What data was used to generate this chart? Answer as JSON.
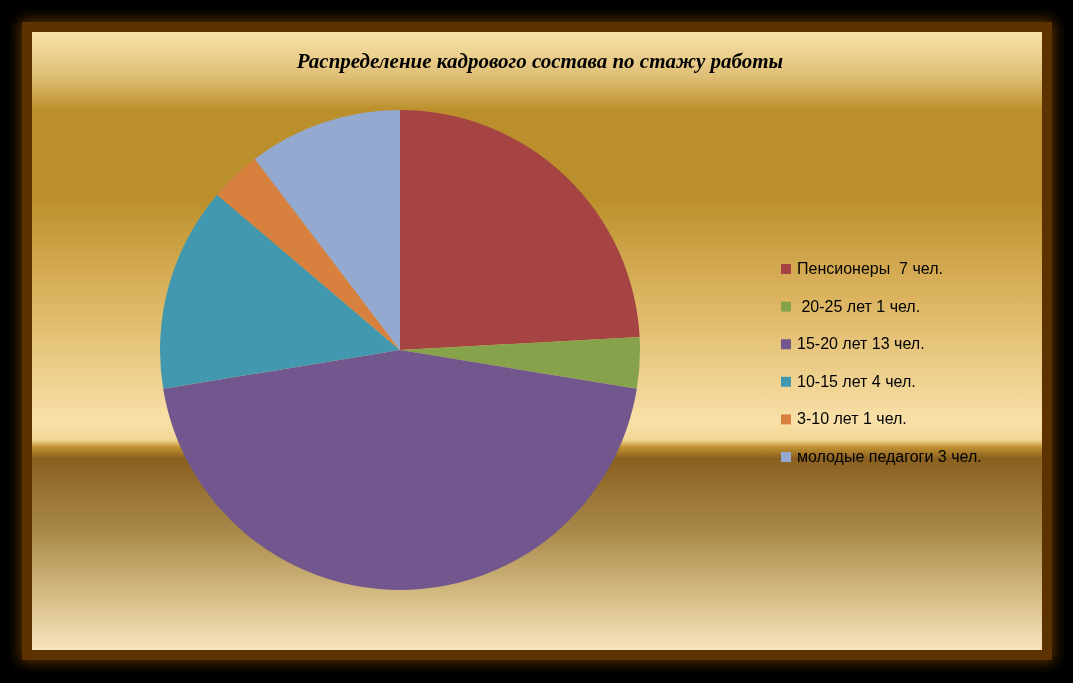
{
  "chart_data": {
    "type": "pie",
    "title": "Распределение кадрового состава по стажу работы",
    "categories": [
      "Пенсионеры  7 чел.",
      " 20-25 лет 1 чел.",
      "15-20 лет 13 чел.",
      "10-15 лет 4 чел.",
      "3-10 лет 1 чел.",
      "молодые педагоги 3 чел."
    ],
    "values": [
      7,
      1,
      13,
      4,
      1,
      3
    ],
    "colors": [
      "#a64444",
      "#86a34c",
      "#72578e",
      "#4298ae",
      "#d8803e",
      "#93a9cf"
    ],
    "legend": "right"
  }
}
